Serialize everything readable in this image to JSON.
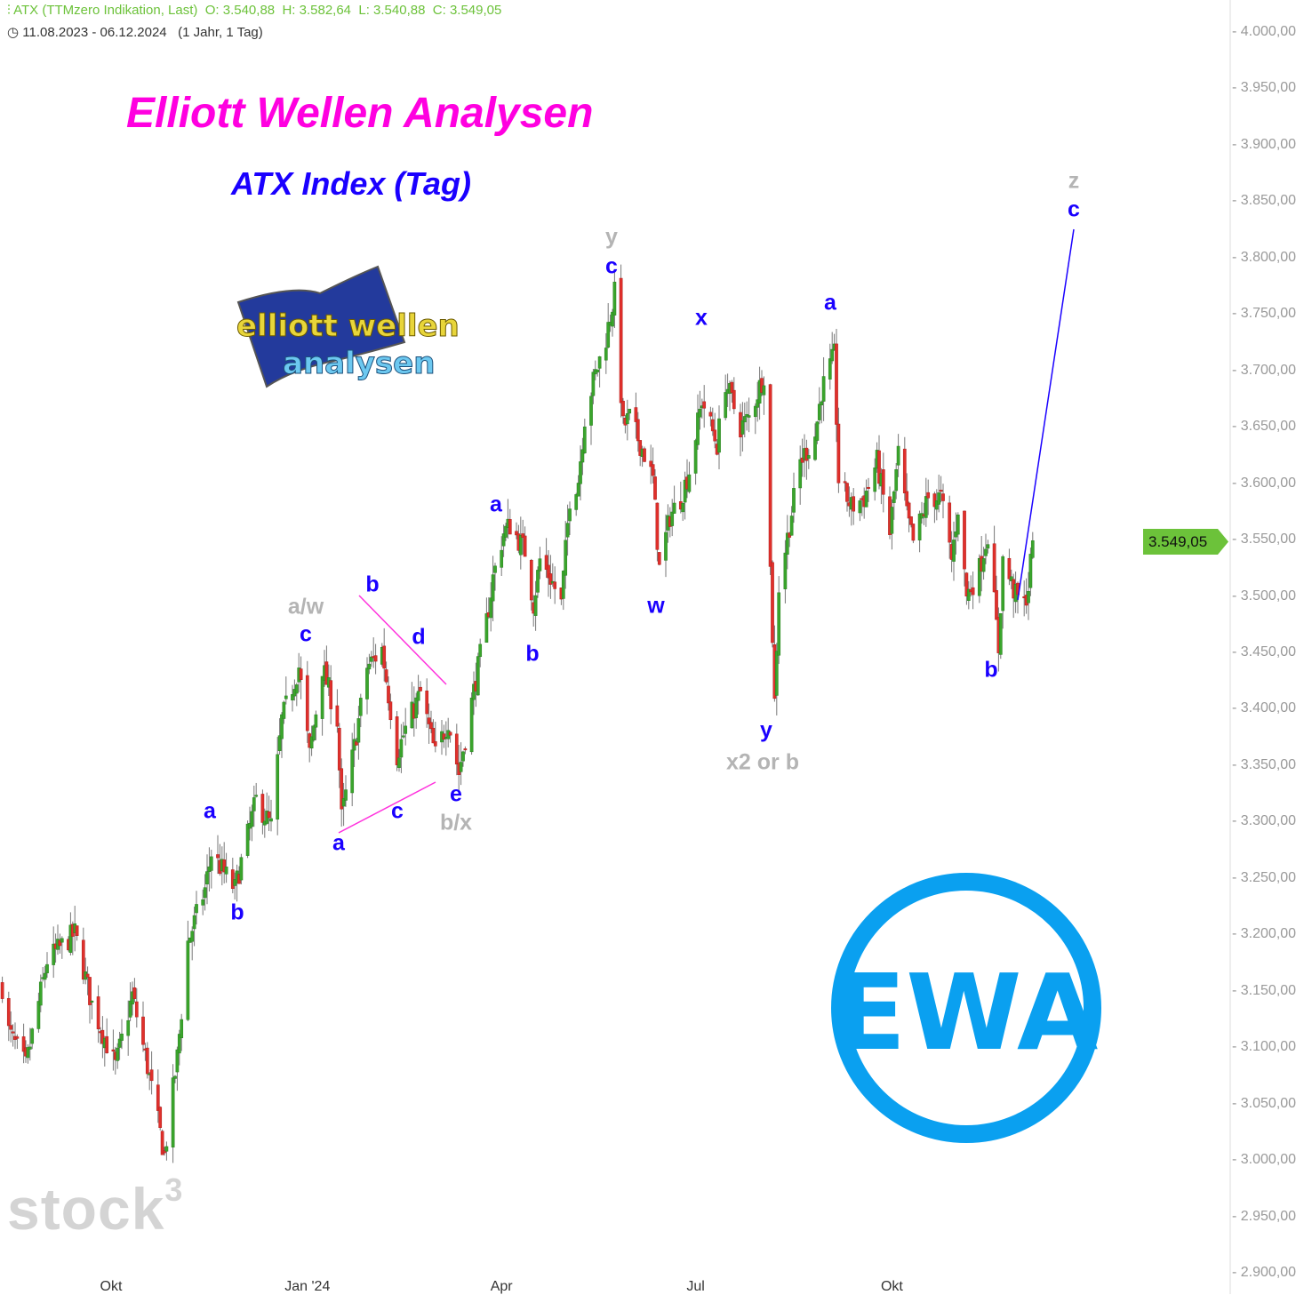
{
  "header": {
    "instrument": "ATX (TTMzero Indikation, Last)",
    "ohlc": {
      "O": "3.540,88",
      "H": "3.582,64",
      "L": "3.540,88",
      "C": "3.549,05"
    },
    "range": "11.08.2023 - 06.12.2024",
    "period": "(1 Jahr, 1 Tag)"
  },
  "titles": {
    "main": "Elliott Wellen Analysen",
    "sub": "ATX Index (Tag)"
  },
  "logos": {
    "elliott_logo": "elliott wellen analysen",
    "ewa_logo": "EWA",
    "watermark": "stock3"
  },
  "current_price_label": "3.549,05",
  "colors": {
    "up": "#3aa52c",
    "down": "#e0302c",
    "wave_blue": "#1a00ff",
    "wave_gray": "#b4b4b4",
    "triangle": "#ff33dd",
    "accent_green": "#6cc23a",
    "ewa_blue": "#0aa0f0"
  },
  "wave_labels": [
    "a",
    "b",
    "a/w",
    "c",
    "a",
    "c",
    "b",
    "d",
    "e",
    "b/x",
    "a",
    "b",
    "y",
    "c",
    "w",
    "x",
    "y",
    "x2 or b",
    "a",
    "b",
    "z",
    "c"
  ],
  "chart_data": {
    "type": "candlestick",
    "title": "ATX (TTMzero Indikation, Last)",
    "ylim": [
      2900,
      4000
    ],
    "y_ticks": [
      "4.000,00",
      "3.950,00",
      "3.900,00",
      "3.850,00",
      "3.800,00",
      "3.750,00",
      "3.700,00",
      "3.650,00",
      "3.600,00",
      "3.550,00",
      "3.500,00",
      "3.450,00",
      "3.400,00",
      "3.350,00",
      "3.300,00",
      "3.250,00",
      "3.200,00",
      "3.150,00",
      "3.100,00",
      "3.050,00",
      "3.000,00",
      "2.950,00",
      "2.900,00"
    ],
    "y_tick_values": [
      4000,
      3950,
      3900,
      3850,
      3800,
      3750,
      3700,
      3650,
      3600,
      3550,
      3500,
      3450,
      3400,
      3350,
      3300,
      3250,
      3200,
      3150,
      3100,
      3050,
      3000,
      2950,
      2900
    ],
    "x_ticks": [
      {
        "label": "Okt",
        "date": "2023-10-01"
      },
      {
        "label": "Jan '24",
        "date": "2024-01-01"
      },
      {
        "label": "Apr",
        "date": "2024-04-01"
      },
      {
        "label": "Jul",
        "date": "2024-07-01"
      },
      {
        "label": "Okt",
        "date": "2024-10-01"
      }
    ],
    "grid": false,
    "last_close": 3549.05,
    "approx_closes": [
      [
        "2023-08-11",
        3154
      ],
      [
        "2023-08-14",
        3114
      ],
      [
        "2023-08-22",
        3083
      ],
      [
        "2023-09-01",
        3177
      ],
      [
        "2023-09-14",
        3201
      ],
      [
        "2023-09-22",
        3138
      ],
      [
        "2023-10-03",
        3083
      ],
      [
        "2023-10-11",
        3146
      ],
      [
        "2023-10-18",
        3083
      ],
      [
        "2023-10-26",
        3004
      ],
      [
        "2023-11-01",
        3091
      ],
      [
        "2023-11-06",
        3193
      ],
      [
        "2023-11-14",
        3240
      ],
      [
        "2023-11-17",
        3272
      ],
      [
        "2023-11-28",
        3240
      ],
      [
        "2023-12-04",
        3288
      ],
      [
        "2023-12-08",
        3319
      ],
      [
        "2023-12-15",
        3296
      ],
      [
        "2023-12-20",
        3390
      ],
      [
        "2023-12-28",
        3437
      ],
      [
        "2024-01-02",
        3359
      ],
      [
        "2024-01-08",
        3437
      ],
      [
        "2024-01-15",
        3390
      ],
      [
        "2024-01-17",
        3303
      ],
      [
        "2024-01-23",
        3366
      ],
      [
        "2024-01-29",
        3437
      ],
      [
        "2024-02-05",
        3453
      ],
      [
        "2024-02-12",
        3359
      ],
      [
        "2024-02-16",
        3382
      ],
      [
        "2024-02-23",
        3414
      ],
      [
        "2024-03-01",
        3359
      ],
      [
        "2024-03-07",
        3390
      ],
      [
        "2024-03-12",
        3343
      ],
      [
        "2024-03-18",
        3406
      ],
      [
        "2024-03-25",
        3477
      ],
      [
        "2024-03-28",
        3516
      ],
      [
        "2024-04-02",
        3556
      ],
      [
        "2024-04-05",
        3563
      ],
      [
        "2024-04-12",
        3540
      ],
      [
        "2024-04-16",
        3493
      ],
      [
        "2024-04-19",
        3532
      ],
      [
        "2024-04-24",
        3516
      ],
      [
        "2024-04-29",
        3493
      ],
      [
        "2024-05-03",
        3587
      ],
      [
        "2024-05-07",
        3603
      ],
      [
        "2024-05-10",
        3658
      ],
      [
        "2024-05-14",
        3690
      ],
      [
        "2024-05-20",
        3729
      ],
      [
        "2024-05-24",
        3768
      ],
      [
        "2024-05-28",
        3650
      ],
      [
        "2024-05-31",
        3658
      ],
      [
        "2024-06-07",
        3626
      ],
      [
        "2024-06-11",
        3603
      ],
      [
        "2024-06-14",
        3524
      ],
      [
        "2024-06-19",
        3571
      ],
      [
        "2024-06-24",
        3587
      ],
      [
        "2024-06-28",
        3611
      ],
      [
        "2024-07-04",
        3674
      ],
      [
        "2024-07-11",
        3634
      ],
      [
        "2024-07-15",
        3690
      ],
      [
        "2024-07-22",
        3650
      ],
      [
        "2024-07-26",
        3658
      ],
      [
        "2024-08-02",
        3697
      ],
      [
        "2024-08-05",
        3524
      ],
      [
        "2024-08-07",
        3406
      ],
      [
        "2024-08-09",
        3508
      ],
      [
        "2024-08-14",
        3563
      ],
      [
        "2024-08-19",
        3619
      ],
      [
        "2024-08-26",
        3642
      ],
      [
        "2024-08-29",
        3682
      ],
      [
        "2024-09-04",
        3713
      ],
      [
        "2024-09-06",
        3603
      ],
      [
        "2024-09-12",
        3579
      ],
      [
        "2024-09-18",
        3587
      ],
      [
        "2024-09-24",
        3619
      ],
      [
        "2024-09-30",
        3556
      ],
      [
        "2024-10-04",
        3626
      ],
      [
        "2024-10-08",
        3571
      ],
      [
        "2024-10-11",
        3548
      ],
      [
        "2024-10-18",
        3587
      ],
      [
        "2024-10-24",
        3587
      ],
      [
        "2024-10-29",
        3532
      ],
      [
        "2024-11-01",
        3579
      ],
      [
        "2024-11-05",
        3500
      ],
      [
        "2024-11-11",
        3524
      ],
      [
        "2024-11-15",
        3556
      ],
      [
        "2024-11-20",
        3453
      ],
      [
        "2024-11-22",
        3532
      ],
      [
        "2024-11-28",
        3500
      ],
      [
        "2024-12-02",
        3493
      ],
      [
        "2024-12-04",
        3508
      ],
      [
        "2024-12-06",
        3549.05
      ]
    ]
  }
}
